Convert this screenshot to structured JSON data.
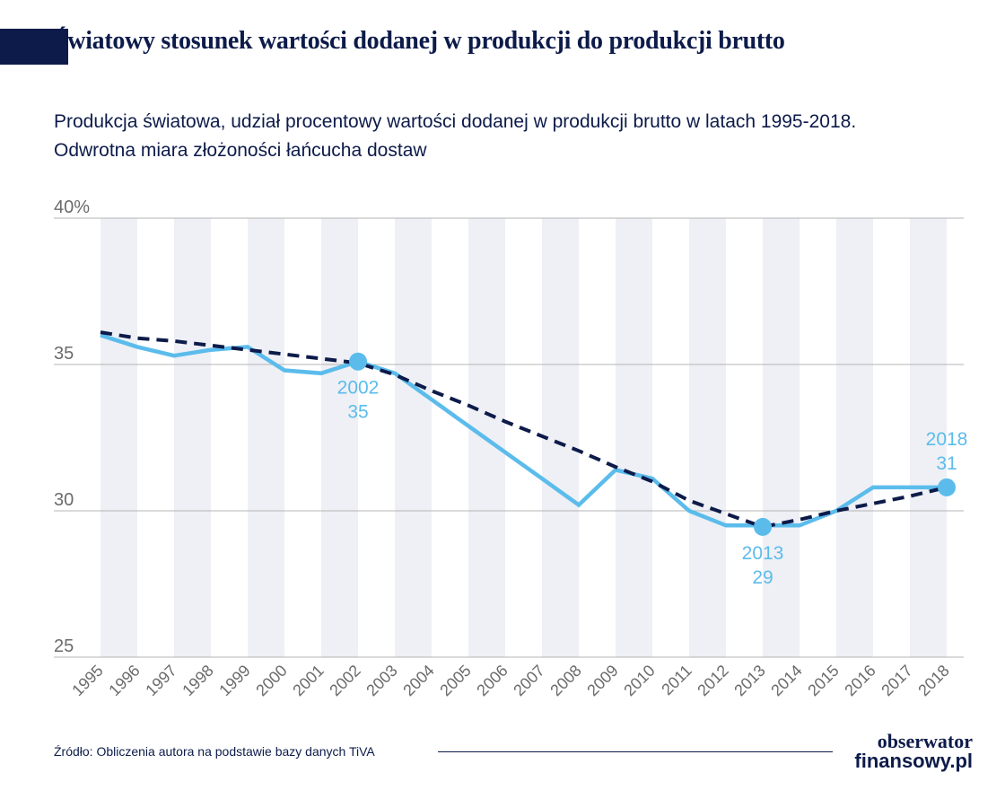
{
  "header": {
    "title": "Światowy stosunek wartości dodanej w produkcji do produkcji brutto",
    "subtitle_line1": "Produkcja światowa, udział procentowy wartości dodanej w produkcji brutto w latach 1995-2018.",
    "subtitle_line2": "Odwrotna miara złożoności łańcucha dostaw"
  },
  "footer": {
    "source": "Źródło: Obliczenia autora na podstawie bazy danych TiVA",
    "logo_line1": "obserwator",
    "logo_line2": "finansowy.pl"
  },
  "chart_data": {
    "type": "line",
    "x": [
      1995,
      1996,
      1997,
      1998,
      1999,
      2000,
      2001,
      2002,
      2003,
      2004,
      2005,
      2006,
      2007,
      2008,
      2009,
      2010,
      2011,
      2012,
      2013,
      2014,
      2015,
      2016,
      2017,
      2018
    ],
    "ylim": [
      25,
      40
    ],
    "yticks": [
      25,
      30,
      35,
      40
    ],
    "ytick_labels": [
      "25",
      "30",
      "35",
      "40%"
    ],
    "grid": "horizontal",
    "series": [
      {
        "style": "solid",
        "color": "#5bbcec",
        "values": [
          36.0,
          35.6,
          35.3,
          35.5,
          35.6,
          34.8,
          34.7,
          35.1,
          34.7,
          33.8,
          32.9,
          32.0,
          31.1,
          30.2,
          31.4,
          31.1,
          30.0,
          29.5,
          29.5,
          29.5,
          30.0,
          30.8,
          30.8,
          30.8
        ]
      },
      {
        "style": "dashed",
        "color": "#0d1b4a",
        "values": [
          36.1,
          35.9,
          35.8,
          35.65,
          35.5,
          35.35,
          35.2,
          35.05,
          34.65,
          34.1,
          33.6,
          33.05,
          32.55,
          32.05,
          31.5,
          31.0,
          30.35,
          29.9,
          29.45,
          29.7,
          30.0,
          30.25,
          30.5,
          30.8
        ]
      }
    ],
    "highlighted_points": [
      {
        "year": 2002,
        "value": 35.1,
        "label_year": "2002",
        "label_value": "35",
        "label_position": "below"
      },
      {
        "year": 2013,
        "value": 29.45,
        "label_year": "2013",
        "label_value": "29",
        "label_position": "below"
      },
      {
        "year": 2018,
        "value": 30.8,
        "label_year": "2018",
        "label_value": "31",
        "label_position": "above"
      }
    ],
    "colors": {
      "band": "#eef0f5",
      "grid": "#b5b5b5",
      "tick_text": "#6b6b6b",
      "highlight": "#5bbcec"
    }
  }
}
